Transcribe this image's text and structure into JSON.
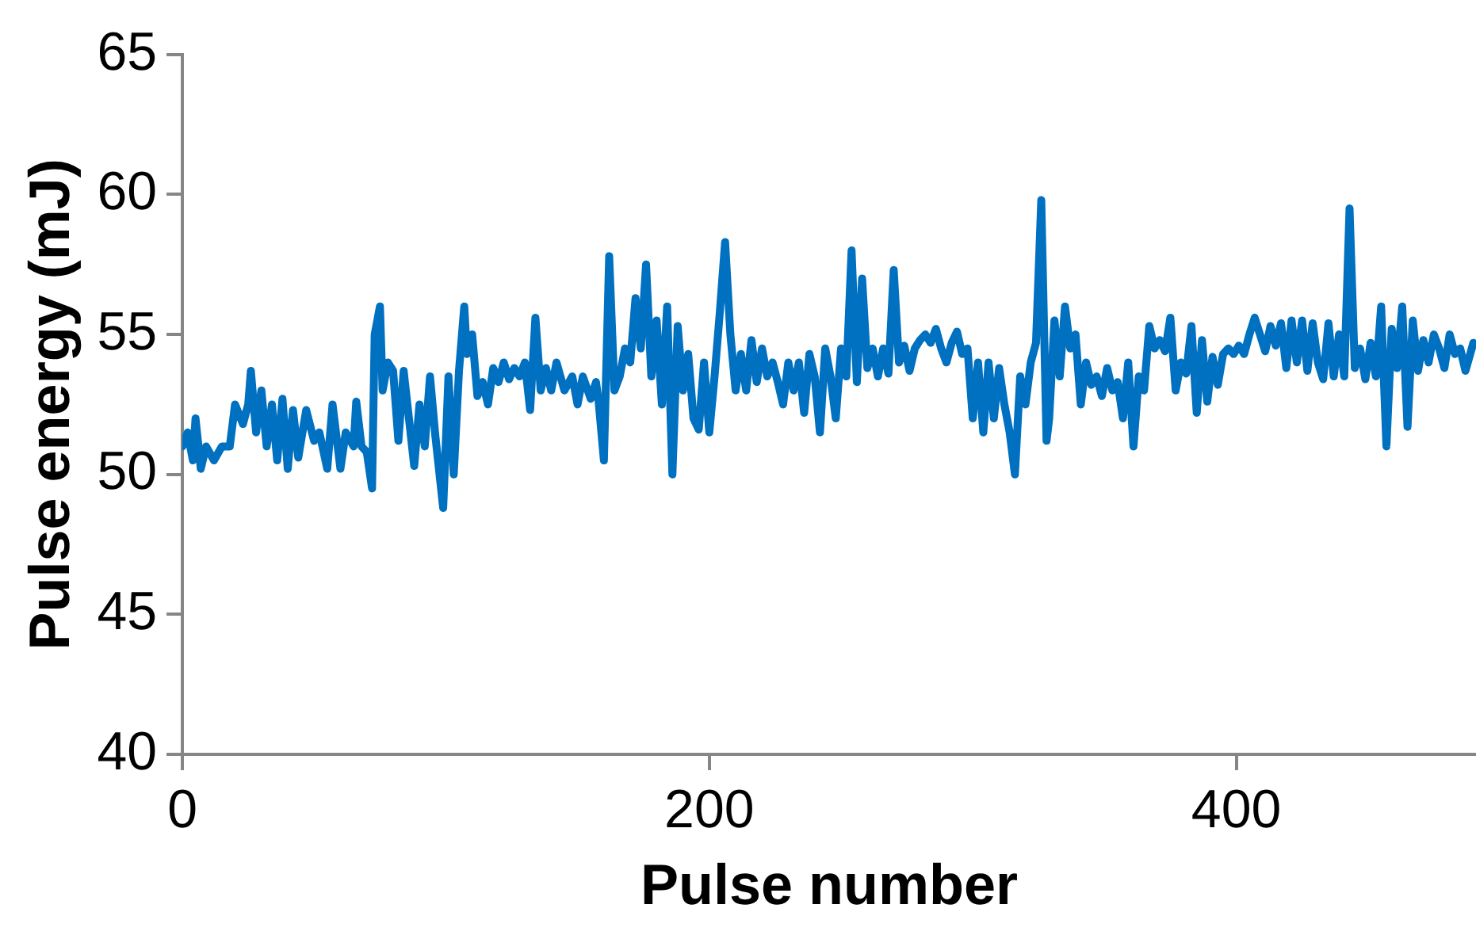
{
  "chart_data": {
    "type": "line",
    "xlabel": "Pulse number",
    "ylabel": "Pulse energy (mJ)",
    "xlim": [
      0,
      491
    ],
    "xticks": [
      0,
      200,
      400
    ],
    "ylim": [
      40,
      65
    ],
    "yticks": [
      40,
      45,
      50,
      55,
      60,
      65
    ],
    "series": [
      {
        "color": "#0070c0",
        "x": [
          0,
          2,
          4,
          5,
          7,
          9,
          12,
          15,
          18,
          20,
          23,
          25,
          26,
          28,
          30,
          32,
          34,
          36,
          38,
          40,
          42,
          44,
          47,
          50,
          52,
          55,
          57,
          60,
          62,
          65,
          66,
          68,
          70,
          72,
          73,
          75,
          76,
          78,
          80,
          82,
          84,
          86,
          88,
          90,
          92,
          94,
          96,
          99,
          101,
          103,
          105,
          107,
          108,
          110,
          112,
          114,
          116,
          118,
          120,
          122,
          124,
          126,
          128,
          130,
          132,
          134,
          136,
          138,
          140,
          142,
          145,
          148,
          150,
          152,
          155,
          157,
          158,
          160,
          162,
          164,
          166,
          168,
          170,
          172,
          174,
          176,
          178,
          180,
          182,
          184,
          186,
          188,
          190,
          192,
          194,
          196,
          198,
          200,
          202,
          204,
          206,
          208,
          210,
          212,
          214,
          216,
          218,
          220,
          222,
          224,
          226,
          228,
          230,
          232,
          234,
          236,
          238,
          240,
          242,
          244,
          246,
          248,
          250,
          252,
          254,
          256,
          258,
          260,
          262,
          264,
          266,
          268,
          270,
          272,
          274,
          276,
          278,
          280,
          282,
          284,
          286,
          288,
          290,
          292,
          294,
          296,
          298,
          300,
          302,
          304,
          306,
          308,
          310,
          312,
          314,
          316,
          318,
          320,
          322,
          324,
          326,
          328,
          329,
          331,
          333,
          335,
          337,
          339,
          341,
          343,
          345,
          347,
          349,
          351,
          353,
          355,
          357,
          359,
          361,
          363,
          365,
          367,
          369,
          371,
          373,
          375,
          377,
          379,
          381,
          383,
          385,
          387,
          389,
          391,
          393,
          395,
          397,
          399,
          401,
          403,
          405,
          407,
          409,
          411,
          413,
          415,
          417,
          419,
          421,
          423,
          425,
          427,
          429,
          431,
          433,
          435,
          437,
          439,
          441,
          443,
          445,
          447,
          449,
          451,
          453,
          455,
          457,
          459,
          461,
          463,
          465,
          467,
          469,
          471,
          473,
          475,
          477,
          479,
          481,
          483,
          485,
          487,
          490
        ],
        "values": [
          51,
          51.5,
          50.5,
          52,
          50.2,
          51,
          50.5,
          51,
          51,
          52.5,
          51.8,
          52.5,
          53.7,
          51.5,
          53,
          51,
          52.5,
          50.5,
          52.7,
          50.2,
          52.3,
          50.6,
          52.3,
          51.2,
          51.5,
          50.2,
          52.5,
          50.2,
          51.5,
          51,
          52.6,
          51,
          50.8,
          49.5,
          55,
          56,
          53,
          54,
          53.7,
          51.2,
          53.7,
          52,
          50.3,
          52.5,
          51,
          53.5,
          51.4,
          48.8,
          53.5,
          50,
          53.7,
          56,
          54.3,
          55,
          52.8,
          53.3,
          52.5,
          53.8,
          53.3,
          54,
          53.4,
          53.8,
          53.5,
          54,
          52.3,
          55.6,
          53,
          53.8,
          53,
          54,
          53,
          53.5,
          52.5,
          53.5,
          52.7,
          53.3,
          52.6,
          50.5,
          57.8,
          53,
          53.5,
          54.5,
          54,
          56.3,
          54.5,
          57.5,
          53.5,
          55.5,
          52.5,
          56,
          50,
          55.3,
          53,
          54.3,
          52,
          51.6,
          54,
          51.5,
          53.5,
          55.8,
          58.3,
          55,
          53,
          54.3,
          53,
          54.8,
          53.3,
          54.5,
          53.5,
          54,
          53.3,
          52.5,
          54,
          53,
          54,
          52.2,
          54.3,
          53.5,
          51.5,
          54.5,
          53.5,
          52,
          54.5,
          53.5,
          58,
          53.3,
          57,
          53.8,
          54.5,
          53.5,
          54.5,
          53.6,
          57.3,
          54,
          54.6,
          53.7,
          54.5,
          54.8,
          55,
          54.7,
          55.2,
          54.5,
          54,
          54.7,
          55.1,
          54.3,
          54.5,
          52,
          54,
          51.5,
          54,
          52,
          53.8,
          52.5,
          51.5,
          50,
          53.5,
          52.5,
          54,
          54.7,
          59.8,
          51.2,
          52,
          55.5,
          53.5,
          56,
          54.5,
          55,
          52.5,
          54,
          53.2,
          53.5,
          52.8,
          53.8,
          53,
          53.3,
          52,
          54,
          51,
          53.5,
          53,
          55.3,
          54.5,
          54.8,
          54.4,
          55.6,
          53,
          54,
          53.6,
          55.3,
          52.2,
          54.8,
          52.6,
          54.2,
          53.2,
          54.3,
          54.5,
          54.3,
          54.6,
          54.3,
          55,
          55.6,
          55,
          54.4,
          55.3,
          54.6,
          55.4,
          53.8,
          55.5,
          54,
          55.5,
          53.7,
          55.4,
          54,
          53.4,
          55.4,
          53.5,
          55,
          53.5,
          59.5,
          53.8,
          54.5,
          53.4,
          54.7,
          53.5,
          56,
          51,
          55.2,
          53.8,
          56,
          51.7,
          55.5,
          53.7,
          54.8,
          54,
          55,
          54.5,
          53.8,
          55,
          54.3,
          54.5,
          53.7,
          54.7
        ]
      }
    ]
  }
}
